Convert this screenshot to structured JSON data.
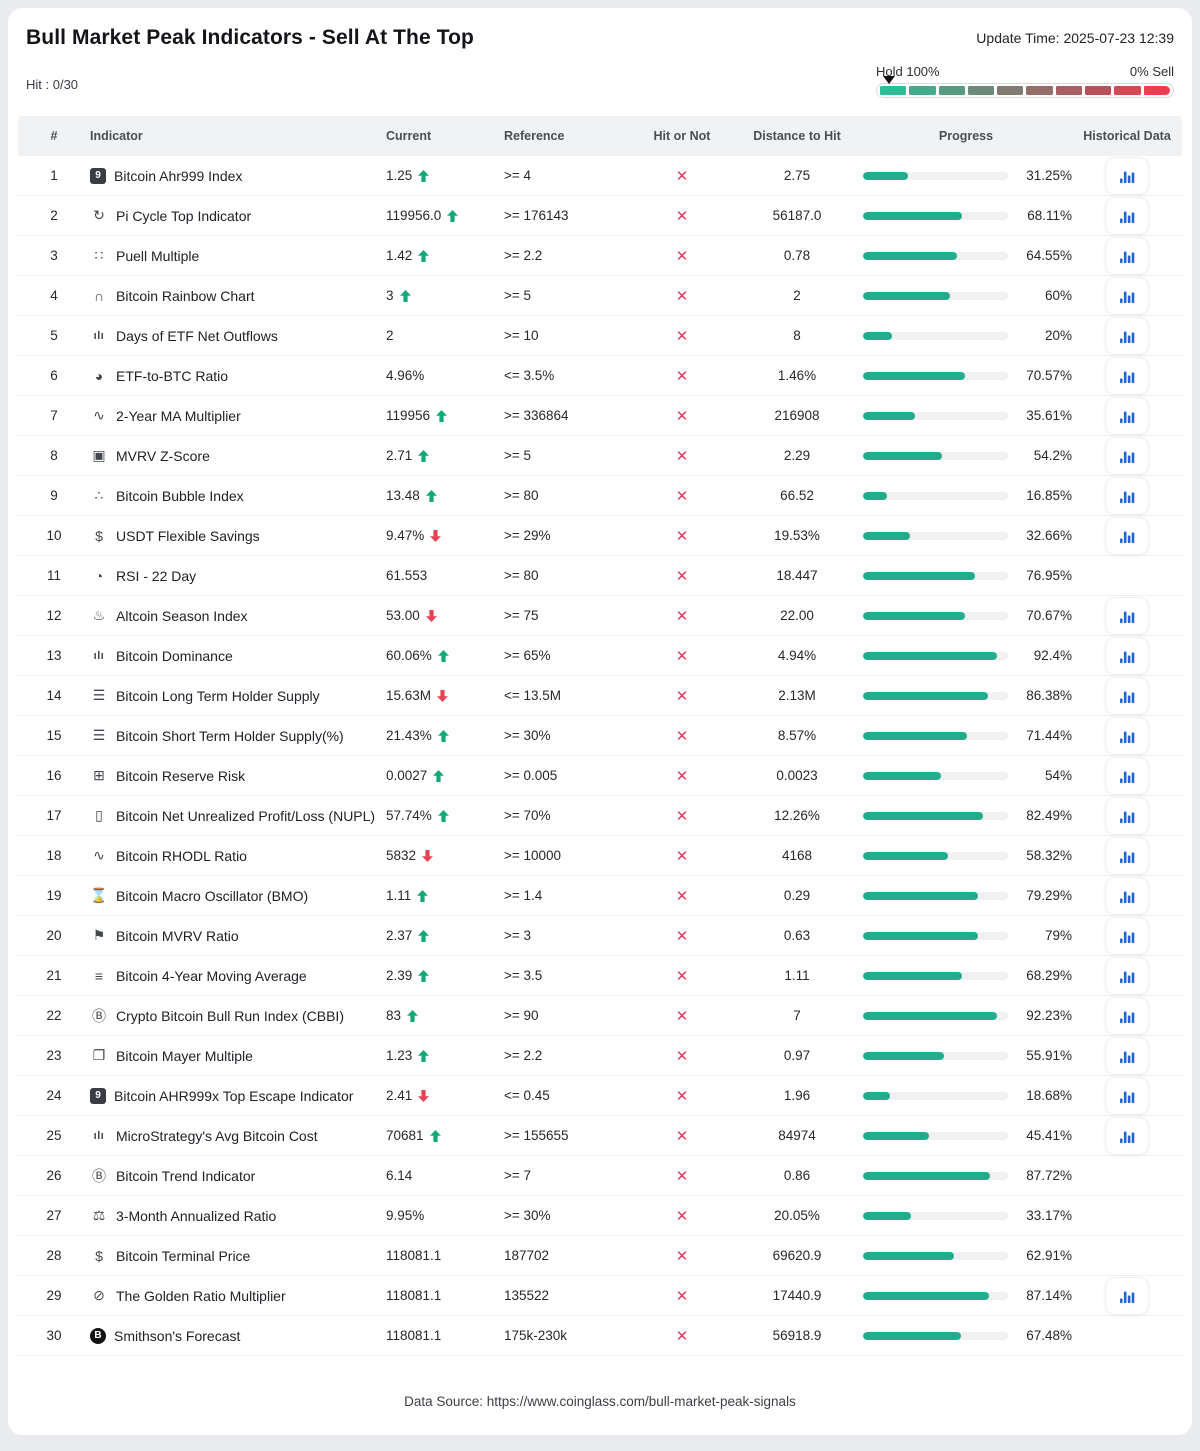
{
  "colors": {
    "accent": "#23ac8b",
    "up": "#10a978",
    "down": "#e64356",
    "hit_x": "#d6405f",
    "history_blue": "#2065d1"
  },
  "header": {
    "title": "Bull Market Peak Indicators - Sell At The Top",
    "update_time": "Update Time: 2025-07-23 12:39",
    "hit_label": "Hit : 0/30",
    "gauge": {
      "left_label": "Hold 100%",
      "right_label": "0% Sell",
      "marker_left_pct": 2,
      "segment_colors": [
        "#2ebd96",
        "#43ab8c",
        "#579b83",
        "#6c8a79",
        "#7f7b72",
        "#956e6c",
        "#a85f63",
        "#bb525b",
        "#d64853",
        "#ec3e50"
      ]
    }
  },
  "table": {
    "columns": [
      "#",
      "Indicator",
      "Current",
      "Reference",
      "Hit or Not",
      "Distance to Hit",
      "Progress",
      "Historical Data"
    ],
    "hit_glyph": "✕",
    "rows": [
      {
        "num": "1",
        "icon": {
          "name": "ahr999-badge-icon",
          "glyph": "9",
          "style": "badge-square"
        },
        "name": "Bitcoin Ahr999 Index",
        "current": "1.25",
        "trend": "up",
        "reference": ">= 4",
        "distance": "2.75",
        "progress": 31.25,
        "progress_label": "31.25%",
        "history": true
      },
      {
        "num": "2",
        "icon": {
          "name": "pi-cycle-icon",
          "glyph": "↻",
          "style": "plain"
        },
        "name": "Pi Cycle Top Indicator",
        "current": "119956.0",
        "trend": "up",
        "reference": ">= 176143",
        "distance": "56187.0",
        "progress": 68.11,
        "progress_label": "68.11%",
        "history": true
      },
      {
        "num": "3",
        "icon": {
          "name": "puell-scatter-icon",
          "glyph": "∷",
          "style": "plain"
        },
        "name": "Puell Multiple",
        "current": "1.42",
        "trend": "up",
        "reference": ">= 2.2",
        "distance": "0.78",
        "progress": 64.55,
        "progress_label": "64.55%",
        "history": true
      },
      {
        "num": "4",
        "icon": {
          "name": "rainbow-icon",
          "glyph": "∩",
          "style": "plain"
        },
        "name": "Bitcoin Rainbow Chart",
        "current": "3",
        "trend": "up",
        "reference": ">= 5",
        "distance": "2",
        "progress": 60,
        "progress_label": "60%",
        "history": true
      },
      {
        "num": "5",
        "icon": {
          "name": "bar-chart-icon",
          "glyph": "ılı",
          "style": "bars"
        },
        "name": "Days of ETF Net Outflows",
        "current": "2",
        "trend": null,
        "reference": ">= 10",
        "distance": "8",
        "progress": 20,
        "progress_label": "20%",
        "history": true
      },
      {
        "num": "6",
        "icon": {
          "name": "pie-chart-icon",
          "glyph": "◕",
          "style": "plain"
        },
        "name": "ETF-to-BTC Ratio",
        "current": "4.96%",
        "trend": null,
        "reference": "<= 3.5%",
        "distance": "1.46%",
        "progress": 70.57,
        "progress_label": "70.57%",
        "history": true
      },
      {
        "num": "7",
        "icon": {
          "name": "line-chart-icon",
          "glyph": "∿",
          "style": "plain"
        },
        "name": "2-Year MA Multiplier",
        "current": "119956",
        "trend": "up",
        "reference": ">= 336864",
        "distance": "216908",
        "progress": 35.61,
        "progress_label": "35.61%",
        "history": true
      },
      {
        "num": "8",
        "icon": {
          "name": "clipboard-icon",
          "glyph": "▣",
          "style": "plain"
        },
        "name": "MVRV Z-Score",
        "current": "2.71",
        "trend": "up",
        "reference": ">= 5",
        "distance": "2.29",
        "progress": 54.2,
        "progress_label": "54.2%",
        "history": true
      },
      {
        "num": "9",
        "icon": {
          "name": "bubble-network-icon",
          "glyph": "∴",
          "style": "plain"
        },
        "name": "Bitcoin Bubble Index",
        "current": "13.48",
        "trend": "up",
        "reference": ">= 80",
        "distance": "66.52",
        "progress": 16.85,
        "progress_label": "16.85%",
        "history": true
      },
      {
        "num": "10",
        "icon": {
          "name": "dollar-icon",
          "glyph": "$",
          "style": "plain"
        },
        "name": "USDT Flexible Savings",
        "current": "9.47%",
        "trend": "down",
        "reference": ">= 29%",
        "distance": "19.53%",
        "progress": 32.66,
        "progress_label": "32.66%",
        "history": true
      },
      {
        "num": "11",
        "icon": {
          "name": "clock-icon",
          "glyph": "◔",
          "style": "plain"
        },
        "name": "RSI - 22 Day",
        "current": "61.553",
        "trend": null,
        "reference": ">= 80",
        "distance": "18.447",
        "progress": 76.95,
        "progress_label": "76.95%",
        "history": false
      },
      {
        "num": "12",
        "icon": {
          "name": "flame-icon",
          "glyph": "♨",
          "style": "plain"
        },
        "name": "Altcoin Season Index",
        "current": "53.00",
        "trend": "down",
        "reference": ">= 75",
        "distance": "22.00",
        "progress": 70.67,
        "progress_label": "70.67%",
        "history": true
      },
      {
        "num": "13",
        "icon": {
          "name": "dominance-bars-icon",
          "glyph": "ılı",
          "style": "bars"
        },
        "name": "Bitcoin Dominance",
        "current": "60.06%",
        "trend": "up",
        "reference": ">= 65%",
        "distance": "4.94%",
        "progress": 92.4,
        "progress_label": "92.4%",
        "history": true
      },
      {
        "num": "14",
        "icon": {
          "name": "database-icon",
          "glyph": "☰",
          "style": "plain"
        },
        "name": "Bitcoin Long Term Holder Supply",
        "current": "15.63M",
        "trend": "down",
        "reference": "<= 13.5M",
        "distance": "2.13M",
        "progress": 86.38,
        "progress_label": "86.38%",
        "history": true
      },
      {
        "num": "15",
        "icon": {
          "name": "database-icon",
          "glyph": "☰",
          "style": "plain"
        },
        "name": "Bitcoin Short Term Holder Supply(%)",
        "current": "21.43%",
        "trend": "up",
        "reference": ">= 30%",
        "distance": "8.57%",
        "progress": 71.44,
        "progress_label": "71.44%",
        "history": true
      },
      {
        "num": "16",
        "icon": {
          "name": "cube-icon",
          "glyph": "⊞",
          "style": "plain"
        },
        "name": "Bitcoin Reserve Risk",
        "current": "0.0027",
        "trend": "up",
        "reference": ">= 0.005",
        "distance": "0.0023",
        "progress": 54,
        "progress_label": "54%",
        "history": true
      },
      {
        "num": "17",
        "icon": {
          "name": "battery-icon",
          "glyph": "▯",
          "style": "plain"
        },
        "name": "Bitcoin Net Unrealized Profit/Loss (NUPL)",
        "current": "57.74%",
        "trend": "up",
        "reference": ">= 70%",
        "distance": "12.26%",
        "progress": 82.49,
        "progress_label": "82.49%",
        "history": true
      },
      {
        "num": "18",
        "icon": {
          "name": "pulse-icon",
          "glyph": "∿",
          "style": "plain"
        },
        "name": "Bitcoin RHODL Ratio",
        "current": "5832",
        "trend": "down",
        "reference": ">= 10000",
        "distance": "4168",
        "progress": 58.32,
        "progress_label": "58.32%",
        "history": true
      },
      {
        "num": "19",
        "icon": {
          "name": "hourglass-icon",
          "glyph": "⌛",
          "style": "plain"
        },
        "name": "Bitcoin Macro Oscillator (BMO)",
        "current": "1.11",
        "trend": "up",
        "reference": ">= 1.4",
        "distance": "0.29",
        "progress": 79.29,
        "progress_label": "79.29%",
        "history": true
      },
      {
        "num": "20",
        "icon": {
          "name": "flag-icon",
          "glyph": "⚑",
          "style": "plain"
        },
        "name": "Bitcoin MVRV Ratio",
        "current": "2.37",
        "trend": "up",
        "reference": ">= 3",
        "distance": "0.63",
        "progress": 79,
        "progress_label": "79%",
        "history": true
      },
      {
        "num": "21",
        "icon": {
          "name": "lines-icon",
          "glyph": "≡",
          "style": "plain"
        },
        "name": "Bitcoin 4-Year Moving Average",
        "current": "2.39",
        "trend": "up",
        "reference": ">= 3.5",
        "distance": "1.11",
        "progress": 68.29,
        "progress_label": "68.29%",
        "history": true
      },
      {
        "num": "22",
        "icon": {
          "name": "cbbi-circle-icon",
          "glyph": "Ⓑ",
          "style": "plain"
        },
        "name": "Crypto Bitcoin Bull Run Index (CBBI)",
        "current": "83",
        "trend": "up",
        "reference": ">= 90",
        "distance": "7",
        "progress": 92.23,
        "progress_label": "92.23%",
        "history": true
      },
      {
        "num": "23",
        "icon": {
          "name": "copy-icon",
          "glyph": "❐",
          "style": "plain"
        },
        "name": "Bitcoin Mayer Multiple",
        "current": "1.23",
        "trend": "up",
        "reference": ">= 2.2",
        "distance": "0.97",
        "progress": 55.91,
        "progress_label": "55.91%",
        "history": true
      },
      {
        "num": "24",
        "icon": {
          "name": "ahr999x-badge-icon",
          "glyph": "9",
          "style": "badge-square"
        },
        "name": "Bitcoin AHR999x Top Escape Indicator",
        "current": "2.41",
        "trend": "down",
        "reference": "<= 0.45",
        "distance": "1.96",
        "progress": 18.68,
        "progress_label": "18.68%",
        "history": true
      },
      {
        "num": "25",
        "icon": {
          "name": "bar-chart-icon",
          "glyph": "ılı",
          "style": "bars"
        },
        "name": "MicroStrategy's Avg Bitcoin Cost",
        "current": "70681",
        "trend": "up",
        "reference": ">= 155655",
        "distance": "84974",
        "progress": 45.41,
        "progress_label": "45.41%",
        "history": true
      },
      {
        "num": "26",
        "icon": {
          "name": "btc-circle-icon",
          "glyph": "Ⓑ",
          "style": "plain"
        },
        "name": "Bitcoin Trend Indicator",
        "current": "6.14",
        "trend": null,
        "reference": ">= 7",
        "distance": "0.86",
        "progress": 87.72,
        "progress_label": "87.72%",
        "history": false
      },
      {
        "num": "27",
        "icon": {
          "name": "scale-icon",
          "glyph": "⚖",
          "style": "plain"
        },
        "name": "3-Month Annualized Ratio",
        "current": "9.95%",
        "trend": null,
        "reference": ">= 30%",
        "distance": "20.05%",
        "progress": 33.17,
        "progress_label": "33.17%",
        "history": false
      },
      {
        "num": "28",
        "icon": {
          "name": "terminal-price-icon",
          "glyph": "$",
          "style": "plain"
        },
        "name": "Bitcoin Terminal Price",
        "current": "118081.1",
        "trend": null,
        "reference": "187702",
        "distance": "69620.9",
        "progress": 62.91,
        "progress_label": "62.91%",
        "history": false
      },
      {
        "num": "29",
        "icon": {
          "name": "golden-ratio-icon",
          "glyph": "⊘",
          "style": "plain"
        },
        "name": "The Golden Ratio Multiplier",
        "current": "118081.1",
        "trend": null,
        "reference": "135522",
        "distance": "17440.9",
        "progress": 87.14,
        "progress_label": "87.14%",
        "history": true
      },
      {
        "num": "30",
        "icon": {
          "name": "smithson-badge-icon",
          "glyph": "B",
          "style": "badge-circle"
        },
        "name": "Smithson's Forecast",
        "current": "118081.1",
        "trend": null,
        "reference": "175k-230k",
        "distance": "56918.9",
        "progress": 67.48,
        "progress_label": "67.48%",
        "history": false
      }
    ]
  },
  "footer": {
    "source": "Data Source: https://www.coinglass.com/bull-market-peak-signals"
  }
}
